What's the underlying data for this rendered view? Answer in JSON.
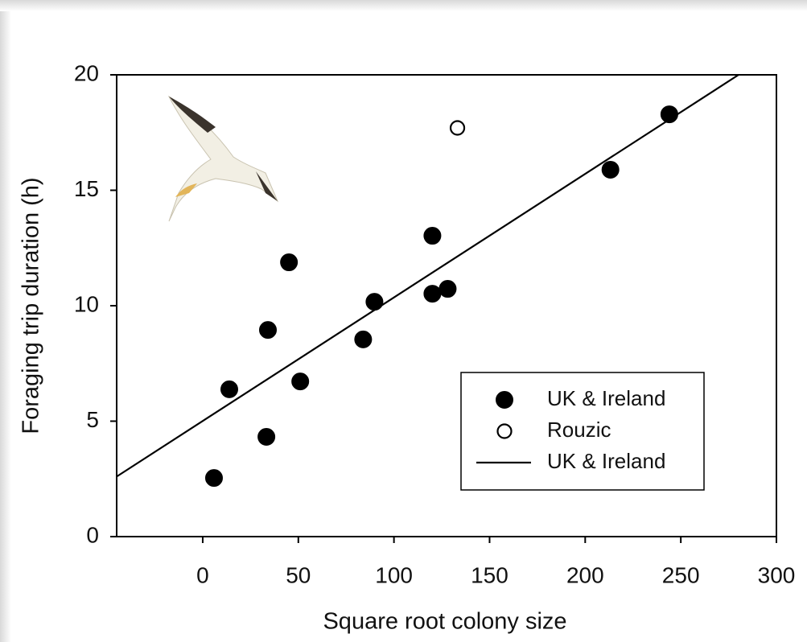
{
  "chart_data": {
    "type": "scatter",
    "x_label": "Square root colony size",
    "y_label": "Foraging trip duration (h)",
    "xlim": [
      -45,
      300
    ],
    "ylim": [
      0,
      20
    ],
    "xticks": [
      0,
      50,
      100,
      150,
      200,
      250,
      300
    ],
    "yticks": [
      0,
      5,
      10,
      15,
      20
    ],
    "legend": "lower right",
    "series": [
      {
        "name": "UK & Ireland",
        "type": "scatter",
        "marker": "filled",
        "color": "#000000",
        "x": [
          5.9,
          13.9,
          33.3,
          34.1,
          45.1,
          51,
          83.9,
          89.8,
          120.1,
          120.1,
          128.1,
          213.2,
          244
        ],
        "values": [
          2.54,
          6.38,
          4.32,
          8.95,
          11.88,
          6.72,
          8.54,
          10.17,
          13.03,
          10.52,
          10.73,
          15.89,
          18.29
        ]
      },
      {
        "name": "Rouzic",
        "type": "scatter",
        "marker": "open",
        "color": "#000000",
        "x": [
          133.2
        ],
        "values": [
          17.7
        ]
      },
      {
        "name": "UK & Ireland",
        "type": "line",
        "color": "#000000",
        "x": [
          -45,
          280.2
        ],
        "values": [
          2.6,
          20
        ]
      }
    ]
  }
}
